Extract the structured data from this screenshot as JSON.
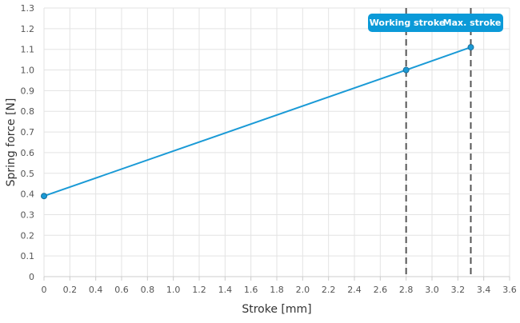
{
  "chart_data": {
    "type": "line",
    "xlabel": "Stroke [mm]",
    "ylabel": "Spring force [N]",
    "xlim": [
      0,
      3.6
    ],
    "ylim": [
      0,
      1.3
    ],
    "xticks": [
      "0",
      "0.2",
      "0.4",
      "0.6",
      "0.8",
      "1.0",
      "1.2",
      "1.4",
      "1.6",
      "1.8",
      "2.0",
      "2.2",
      "2.4",
      "2.6",
      "2.8",
      "3.0",
      "3.2",
      "3.4",
      "3.6"
    ],
    "yticks": [
      "0",
      "0.1",
      "0.2",
      "0.3",
      "0.4",
      "0.5",
      "0.6",
      "0.7",
      "0.8",
      "0.9",
      "1.0",
      "1.1",
      "1.2",
      "1.3"
    ],
    "grid": true,
    "series": [
      {
        "color": "#1a9ad6",
        "x": [
          0,
          2.8,
          3.3
        ],
        "y": [
          0.39,
          1.0,
          1.11
        ]
      }
    ],
    "markers": [
      {
        "x": 2.8,
        "label": "Working stroke"
      },
      {
        "x": 3.3,
        "label": "Max. stroke"
      }
    ],
    "annotation_color": "#0b9ad8"
  }
}
